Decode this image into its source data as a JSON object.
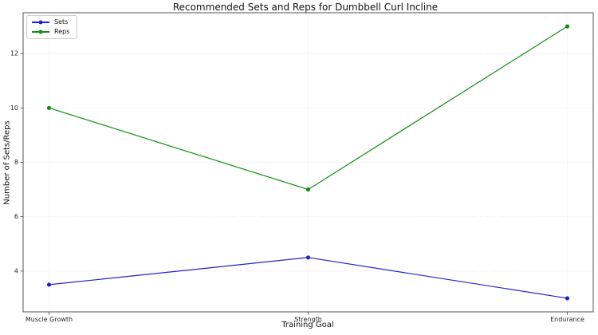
{
  "chart_data": {
    "type": "line",
    "title": "Recommended Sets and Reps for Dumbbell Curl Incline",
    "xlabel": "Training Goal",
    "ylabel": "Number of Sets/Reps",
    "categories": [
      "Muscle Growth",
      "Strength",
      "Endurance"
    ],
    "series": [
      {
        "name": "Sets",
        "color": "#2222cc",
        "marker": "circle",
        "values": [
          3.5,
          4.5,
          3.0
        ]
      },
      {
        "name": "Reps",
        "color": "#128c12",
        "marker": "circle",
        "values": [
          10.0,
          7.0,
          13.0
        ]
      }
    ],
    "yticks": [
      4,
      6,
      8,
      10,
      12
    ],
    "ylim": [
      2.5,
      13.5
    ],
    "xlim": [
      -0.1,
      2.1
    ],
    "grid": true,
    "grid_line_style": "dotted",
    "legend_position": "upper left",
    "background_color": "#ffffff"
  }
}
